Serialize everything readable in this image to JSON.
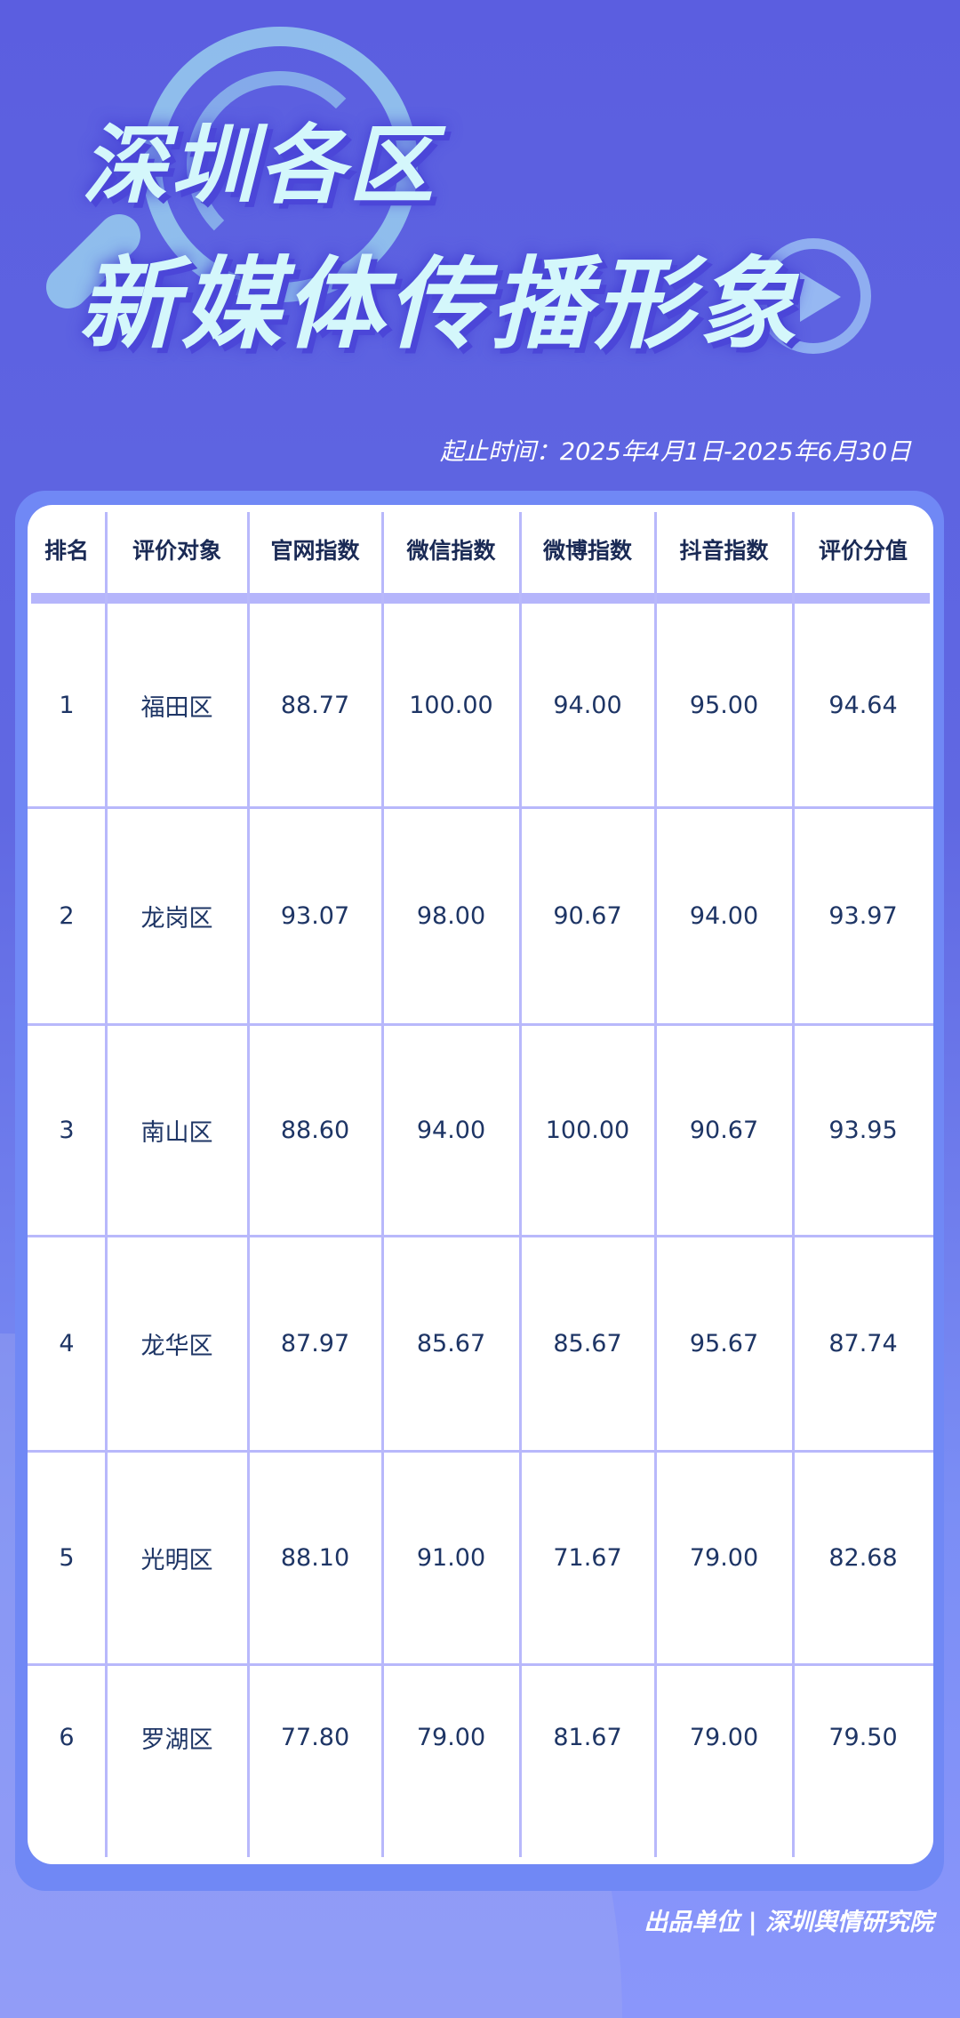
{
  "title_line1": "深圳各区",
  "title_line2": "新媒体传播形象",
  "date_range": "起止时间：2025年4月1日-2025年6月30日",
  "columns": [
    "排名",
    "评价对象",
    "官网指数",
    "微信指数",
    "微博指数",
    "抖音指数",
    "评价分值"
  ],
  "rows": [
    [
      "1",
      "福田区",
      "88.77",
      "100.00",
      "94.00",
      "95.00",
      "94.64"
    ],
    [
      "2",
      "龙岗区",
      "93.07",
      "98.00",
      "90.67",
      "94.00",
      "93.97"
    ],
    [
      "3",
      "南山区",
      "88.60",
      "94.00",
      "100.00",
      "90.67",
      "93.95"
    ],
    [
      "4",
      "龙华区",
      "87.97",
      "85.67",
      "85.67",
      "95.67",
      "87.74"
    ],
    [
      "5",
      "光明区",
      "88.10",
      "91.00",
      "71.67",
      "79.00",
      "82.68"
    ],
    [
      "6",
      "罗湖区",
      "77.80",
      "79.00",
      "81.67",
      "79.00",
      "79.50"
    ]
  ],
  "footer": "出品单位 | 深圳舆情研究院"
}
